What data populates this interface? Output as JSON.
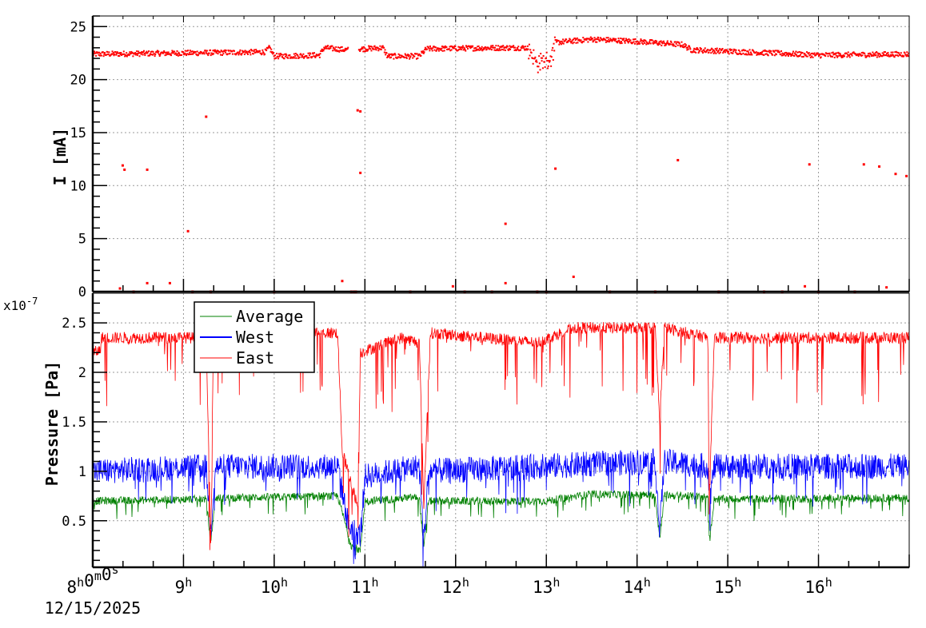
{
  "chart_data": [
    {
      "type": "scatter",
      "panel": "top",
      "ylabel": "I [mA]",
      "xlim_hours": [
        8,
        17
      ],
      "ylim": [
        0,
        26
      ],
      "y_ticks": [
        "0",
        "5",
        "10",
        "15",
        "20",
        "25"
      ],
      "grid": true,
      "color": "#ff0000",
      "series": [
        {
          "baseline": [
            [
              8,
              22.4
            ],
            [
              9.0,
              22.5
            ],
            [
              9.9,
              22.6
            ],
            [
              9.95,
              23.0
            ],
            [
              10.0,
              22.2
            ],
            [
              10.5,
              22.3
            ],
            [
              10.55,
              23.0
            ],
            [
              10.8,
              22.8
            ],
            [
              10.82,
              22.8
            ],
            [
              10.98,
              22.9
            ],
            [
              11.2,
              23.0
            ],
            [
              11.25,
              22.2
            ],
            [
              11.6,
              22.2
            ],
            [
              11.68,
              22.9
            ],
            [
              12.5,
              23.0
            ],
            [
              12.8,
              23.0
            ],
            [
              12.9,
              21.5
            ],
            [
              13.05,
              22.0
            ],
            [
              13.1,
              23.5
            ],
            [
              13.5,
              23.8
            ],
            [
              14.0,
              23.6
            ],
            [
              14.5,
              23.3
            ],
            [
              14.6,
              22.8
            ],
            [
              15.5,
              22.5
            ],
            [
              16.0,
              22.3
            ],
            [
              17.0,
              22.4
            ]
          ],
          "outliers": [
            [
              8.33,
              11.9
            ],
            [
              8.35,
              11.5
            ],
            [
              8.6,
              11.5
            ],
            [
              9.05,
              5.7
            ],
            [
              9.25,
              16.5
            ],
            [
              10.92,
              17.1
            ],
            [
              10.95,
              17.0
            ],
            [
              10.95,
              11.2
            ],
            [
              12.55,
              6.4
            ],
            [
              13.1,
              11.6
            ],
            [
              14.45,
              12.4
            ],
            [
              15.9,
              12.0
            ],
            [
              16.5,
              12.0
            ],
            [
              16.67,
              11.8
            ],
            [
              16.85,
              11.1
            ],
            [
              16.97,
              10.9
            ],
            [
              8.3,
              0.3
            ],
            [
              8.6,
              0.8
            ],
            [
              8.85,
              0.8
            ],
            [
              10.75,
              1.0
            ],
            [
              13.3,
              1.4
            ],
            [
              12.55,
              0.8
            ],
            [
              11.97,
              0.5
            ],
            [
              15.85,
              0.5
            ],
            [
              16.75,
              0.4
            ],
            [
              8.45,
              0
            ],
            [
              9.1,
              0
            ],
            [
              9.3,
              0
            ],
            [
              10.0,
              0
            ],
            [
              10.85,
              0
            ],
            [
              10.88,
              0
            ],
            [
              10.9,
              0
            ],
            [
              11.5,
              0
            ],
            [
              12.1,
              0
            ],
            [
              12.4,
              0
            ],
            [
              12.9,
              0
            ],
            [
              13.0,
              0
            ],
            [
              13.7,
              0
            ],
            [
              14.2,
              0
            ],
            [
              14.9,
              0
            ],
            [
              15.4,
              0
            ],
            [
              15.6,
              0
            ],
            [
              16.0,
              0
            ],
            [
              16.4,
              0
            ]
          ]
        }
      ]
    },
    {
      "type": "line",
      "panel": "bottom",
      "ylabel": "Pressure [Pa]",
      "y_multiplier": "x10",
      "y_exponent": "-7",
      "ylim": [
        0.03,
        2.8
      ],
      "y_ticks": [
        "0.5",
        "1",
        "1.5",
        "2",
        "2.5"
      ],
      "x_ticks": [
        "8h0m0s",
        "9h",
        "10h",
        "11h",
        "12h",
        "13h",
        "14h",
        "15h",
        "16h"
      ],
      "x_date": "12/15/2025",
      "grid": true,
      "legend": "top-left",
      "series": [
        {
          "name": "Average",
          "color": "#008000",
          "noise": 0.04,
          "dip": 0.2,
          "baseline": [
            [
              8,
              0.7
            ],
            [
              9.25,
              0.72
            ],
            [
              9.3,
              0.27
            ],
            [
              9.35,
              0.73
            ],
            [
              10.7,
              0.75
            ],
            [
              10.85,
              0.25
            ],
            [
              10.95,
              0.2
            ],
            [
              11.0,
              0.7
            ],
            [
              11.6,
              0.74
            ],
            [
              11.65,
              0.22
            ],
            [
              11.7,
              0.7
            ],
            [
              13.0,
              0.7
            ],
            [
              13.5,
              0.77
            ],
            [
              14.2,
              0.76
            ],
            [
              14.25,
              0.32
            ],
            [
              14.3,
              0.76
            ],
            [
              14.78,
              0.74
            ],
            [
              14.8,
              0.3
            ],
            [
              14.85,
              0.72
            ],
            [
              17,
              0.73
            ]
          ]
        },
        {
          "name": "West",
          "color": "#0000ff",
          "noise": 0.13,
          "dip": 0.35,
          "baseline": [
            [
              8,
              1.0
            ],
            [
              9.25,
              1.05
            ],
            [
              9.3,
              0.4
            ],
            [
              9.35,
              1.05
            ],
            [
              10.7,
              1.05
            ],
            [
              10.82,
              0.45
            ],
            [
              10.95,
              0.35
            ],
            [
              11.0,
              0.95
            ],
            [
              11.6,
              1.05
            ],
            [
              11.65,
              0.3
            ],
            [
              11.7,
              1.0
            ],
            [
              14.2,
              1.1
            ],
            [
              14.25,
              0.4
            ],
            [
              14.3,
              1.1
            ],
            [
              14.78,
              1.05
            ],
            [
              14.8,
              0.7
            ],
            [
              14.85,
              1.05
            ],
            [
              17,
              1.05
            ]
          ]
        },
        {
          "name": "East",
          "color": "#ff0000",
          "noise": 0.06,
          "dip": 0.7,
          "baseline": [
            [
              8,
              2.2
            ],
            [
              8.08,
              2.22
            ],
            [
              8.1,
              2.35
            ],
            [
              9.25,
              2.35
            ],
            [
              9.3,
              0.3
            ],
            [
              9.33,
              2.4
            ],
            [
              10.7,
              2.4
            ],
            [
              10.75,
              1.2
            ],
            [
              10.92,
              0.65
            ],
            [
              10.95,
              2.2
            ],
            [
              11.4,
              2.35
            ],
            [
              11.6,
              2.3
            ],
            [
              11.65,
              0.65
            ],
            [
              11.72,
              2.4
            ],
            [
              12.9,
              2.3
            ],
            [
              13.3,
              2.45
            ],
            [
              14.2,
              2.45
            ],
            [
              14.25,
              1.5
            ],
            [
              14.3,
              2.45
            ],
            [
              14.78,
              2.35
            ],
            [
              14.8,
              0.8
            ],
            [
              14.85,
              2.35
            ],
            [
              17,
              2.35
            ]
          ]
        }
      ]
    }
  ]
}
